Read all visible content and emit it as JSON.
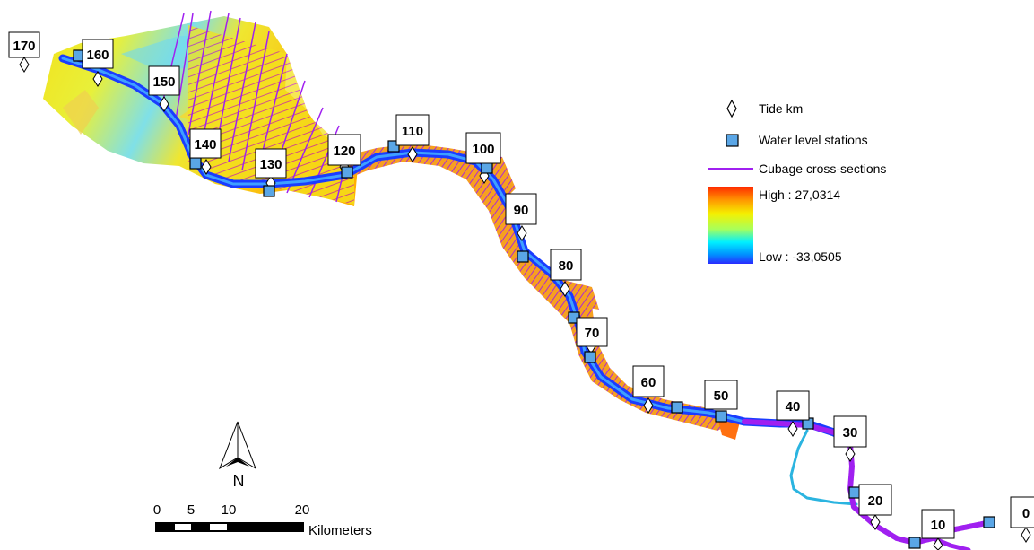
{
  "legend": {
    "tide_label": "Tide km",
    "station_label": "Water level stations",
    "cross_label": "Cubage cross-sections",
    "high_label": "High : 27,0314",
    "low_label": "Low : -33,0505",
    "gradient_colors": [
      "#ff2a00",
      "#ff9a00",
      "#f5f000",
      "#a8ff5a",
      "#00f0ff",
      "#0090ff",
      "#2a2aff"
    ]
  },
  "colors": {
    "station_fill": "#5aa6e6",
    "cross_section": "#a020f0",
    "channel": "#1a3cff"
  },
  "km_labels": [
    "170",
    "160",
    "150",
    "140",
    "130",
    "120",
    "110",
    "100",
    "90",
    "80",
    "70",
    "60",
    "50",
    "40",
    "30",
    "20",
    "10",
    "0"
  ],
  "north_label": "N",
  "scale": {
    "ticks": [
      "0",
      "5",
      "10",
      "20"
    ],
    "unit": "Kilometers"
  }
}
